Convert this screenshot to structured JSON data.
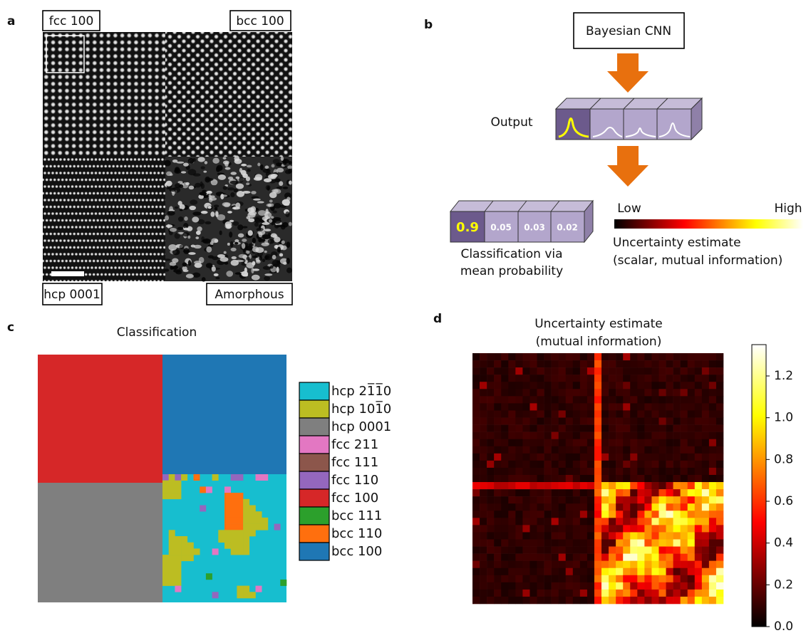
{
  "panel_a": {
    "label": "a",
    "labels": [
      "fcc 100",
      "bcc 100",
      "hcp 0001",
      "Amorphous"
    ]
  },
  "panel_b": {
    "label": "b",
    "model": "Bayesian CNN",
    "output": "Output",
    "probabilities": [
      "0.9",
      "0.05",
      "0.03",
      "0.02"
    ],
    "caption": [
      "Classification via",
      "mean probability"
    ],
    "scale_low": "Low",
    "scale_high": "High",
    "scale_caption": [
      "Uncertainty estimate",
      "(scalar, mutual information)"
    ]
  },
  "panel_c": {
    "label": "c",
    "title": "Classification",
    "legend": [
      {
        "name": "hcp 21̅1̅0",
        "color": "#17becf"
      },
      {
        "name": "hcp 101̅0",
        "color": "#bcbd22"
      },
      {
        "name": "hcp 0001",
        "color": "#7f7f7f"
      },
      {
        "name": "fcc 211",
        "color": "#e377c2"
      },
      {
        "name": "fcc 111",
        "color": "#8c564b"
      },
      {
        "name": "fcc 110",
        "color": "#9467bd"
      },
      {
        "name": "fcc 100",
        "color": "#d62728"
      },
      {
        "name": "bcc 111",
        "color": "#2ca02c"
      },
      {
        "name": "bcc 110",
        "color": "#ff6f0e"
      },
      {
        "name": "bcc 100",
        "color": "#1f77b4"
      }
    ]
  },
  "panel_d": {
    "label": "d",
    "title": [
      "Uncertainty estimate",
      "(mutual information)"
    ],
    "colorbar": {
      "lim": [
        0,
        1.35
      ],
      "ticks": [
        {
          "value": 0,
          "label": "0.0"
        },
        0.2,
        0.4,
        0.6,
        0.8,
        {
          "value": 1,
          "label": "1.0"
        },
        1.2
      ]
    }
  }
}
